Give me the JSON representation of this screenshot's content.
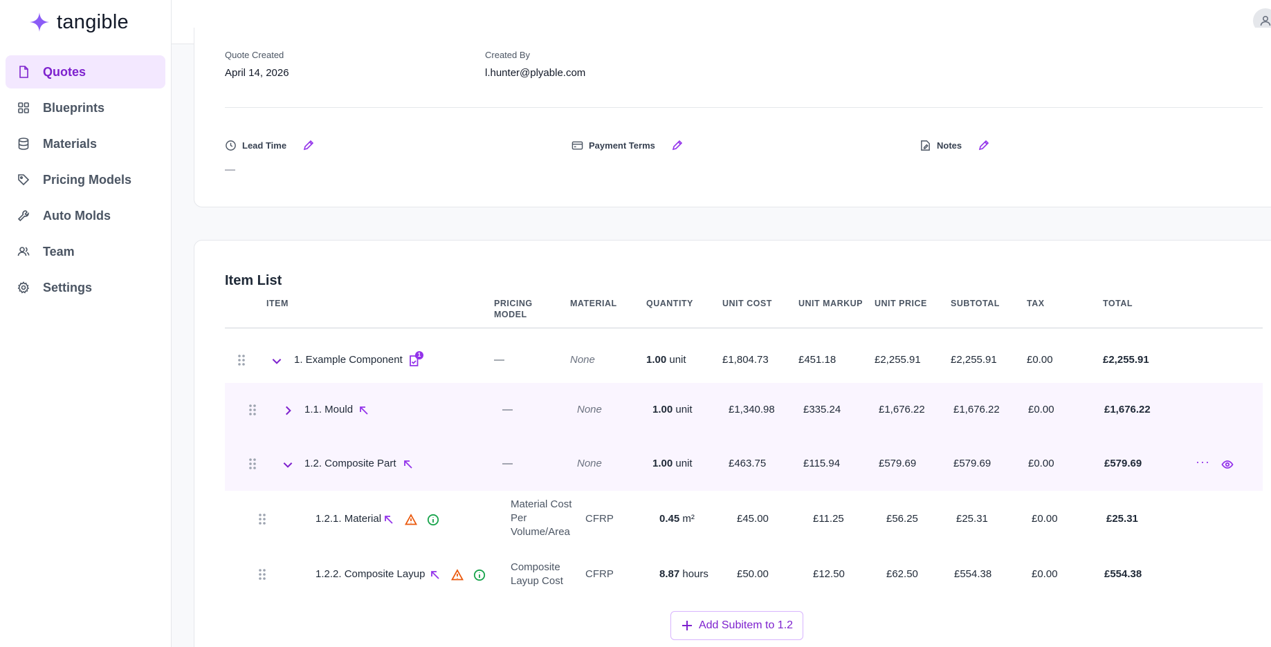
{
  "brand": {
    "name": "tangible",
    "accent": "#8b5cf6"
  },
  "sidebar": {
    "items": [
      {
        "label": "Quotes",
        "icon": "file-icon",
        "active": true
      },
      {
        "label": "Blueprints",
        "icon": "grid-icon"
      },
      {
        "label": "Materials",
        "icon": "database-icon"
      },
      {
        "label": "Pricing Models",
        "icon": "tag-icon"
      },
      {
        "label": "Auto Molds",
        "icon": "wrench-icon"
      },
      {
        "label": "Team",
        "icon": "users-icon"
      },
      {
        "label": "Settings",
        "icon": "gear-icon"
      }
    ]
  },
  "quote": {
    "created_label": "Quote Created",
    "created_value": "April 14, 2026",
    "by_label": "Created By",
    "by_value": "l.hunter@plyable.com",
    "lead_time_label": "Lead Time",
    "lead_time_value": "—",
    "payment_terms_label": "Payment Terms",
    "notes_label": "Notes"
  },
  "items": {
    "title": "Item List",
    "headers": {
      "item": "ITEM",
      "pricing_model": "PRICING MODEL",
      "material": "MATERIAL",
      "quantity": "QUANTITY",
      "unit_cost": "UNIT COST",
      "unit_markup": "UNIT MARKUP",
      "unit_price": "UNIT PRICE",
      "subtotal": "SUBTOTAL",
      "tax": "TAX",
      "total": "TOTAL"
    },
    "rows": [
      {
        "name": "1. Example Component",
        "badge": "1",
        "pricing_model": "—",
        "material": "None",
        "qty": "1.00",
        "unit": "unit",
        "unit_cost": "£1,804.73",
        "unit_markup": "£451.18",
        "unit_price": "£2,255.91",
        "subtotal": "£2,255.91",
        "tax": "£0.00",
        "total": "£2,255.91"
      },
      {
        "name": "1.1. Mould",
        "pricing_model": "—",
        "material": "None",
        "qty": "1.00",
        "unit": "unit",
        "unit_cost": "£1,340.98",
        "unit_markup": "£335.24",
        "unit_price": "£1,676.22",
        "subtotal": "£1,676.22",
        "tax": "£0.00",
        "total": "£1,676.22"
      },
      {
        "name": "1.2. Composite Part",
        "pricing_model": "—",
        "material": "None",
        "qty": "1.00",
        "unit": "unit",
        "unit_cost": "£463.75",
        "unit_markup": "£115.94",
        "unit_price": "£579.69",
        "subtotal": "£579.69",
        "tax": "£0.00",
        "total": "£579.69",
        "more": "···"
      },
      {
        "name": "1.2.1. Material",
        "pricing_model": "Material Cost Per Volume/Area",
        "material": "CFRP",
        "qty": "0.45",
        "unit": "m²",
        "unit_cost": "£45.00",
        "unit_markup": "£11.25",
        "unit_price": "£56.25",
        "subtotal": "£25.31",
        "tax": "£0.00",
        "total": "£25.31"
      },
      {
        "name": "1.2.2. Composite Layup",
        "pricing_model": "Composite Layup Cost",
        "material": "CFRP",
        "qty": "8.87",
        "unit": "hours",
        "unit_cost": "£50.00",
        "unit_markup": "£12.50",
        "unit_price": "£62.50",
        "subtotal": "£554.38",
        "tax": "£0.00",
        "total": "£554.38"
      }
    ],
    "add_button": "Add Subitem to 1.2"
  }
}
